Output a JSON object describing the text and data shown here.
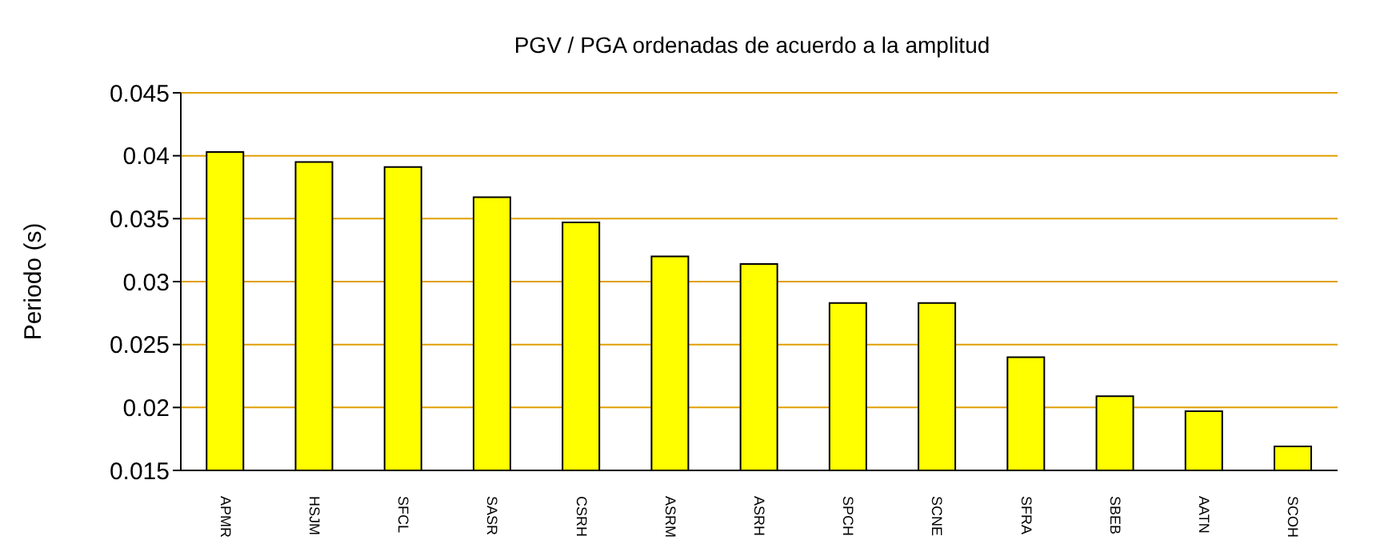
{
  "chart_data": {
    "type": "bar",
    "title": "PGV / PGA ordenadas de acuerdo a la amplitud",
    "ylabel": "Periodo (s)",
    "categories": [
      "APMR",
      "HSJM",
      "SFCL",
      "SASR",
      "CSRH",
      "ASRM",
      "ASRH",
      "SPCH",
      "SCNE",
      "SFRA",
      "SBEB",
      "AATN",
      "SCOH"
    ],
    "values": [
      0.0403,
      0.0395,
      0.0391,
      0.0367,
      0.0347,
      0.032,
      0.0314,
      0.0283,
      0.0283,
      0.024,
      0.0209,
      0.0197,
      0.0169
    ],
    "color": "#ffff00",
    "ylim": [
      0.015,
      0.045
    ],
    "yticks": [
      0.015,
      0.02,
      0.025,
      0.03,
      0.035,
      0.04,
      0.045
    ],
    "grid": "y",
    "legend": false
  }
}
